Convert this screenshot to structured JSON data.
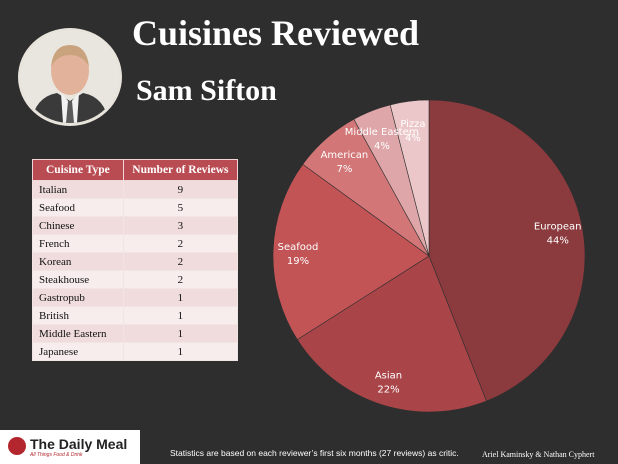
{
  "header": {
    "title": "Cuisines Reviewed",
    "subtitle": "Sam Sifton"
  },
  "table": {
    "headers": [
      "Cuisine Type",
      "Number of Reviews"
    ],
    "rows": [
      [
        "Italian",
        "9"
      ],
      [
        "Seafood",
        "5"
      ],
      [
        "Chinese",
        "3"
      ],
      [
        "French",
        "2"
      ],
      [
        "Korean",
        "2"
      ],
      [
        "Steakhouse",
        "2"
      ],
      [
        "Gastropub",
        "1"
      ],
      [
        "British",
        "1"
      ],
      [
        "Middle Eastern",
        "1"
      ],
      [
        "Japanese",
        "1"
      ]
    ]
  },
  "chart_data": {
    "type": "pie",
    "slices": [
      {
        "label": "European",
        "pct": "44%",
        "value": 44,
        "color": "#8b3a3d"
      },
      {
        "label": "Asian",
        "pct": "22%",
        "value": 22,
        "color": "#a94548"
      },
      {
        "label": "Seafood",
        "pct": "19%",
        "value": 19,
        "color": "#c25456"
      },
      {
        "label": "American",
        "pct": "7%",
        "value": 7,
        "color": "#d27677"
      },
      {
        "label": "Middle Eastern",
        "pct": "4%",
        "value": 4,
        "color": "#dea6a8"
      },
      {
        "label": "Pizza",
        "pct": "4%",
        "value": 4,
        "color": "#ecc7c9"
      }
    ]
  },
  "footer": {
    "logo": "The Daily Meal",
    "logo_tagline": "All Things Food & Drink",
    "note": "Statistics are based on each reviewer’s first six months (27 reviews) as critic.",
    "credit": "Ariel Kaminsky & Nathan Cyphert"
  },
  "colors": {
    "background": "#2e2e2e",
    "table_header": "#b94c52",
    "brand": "#b3262d"
  }
}
